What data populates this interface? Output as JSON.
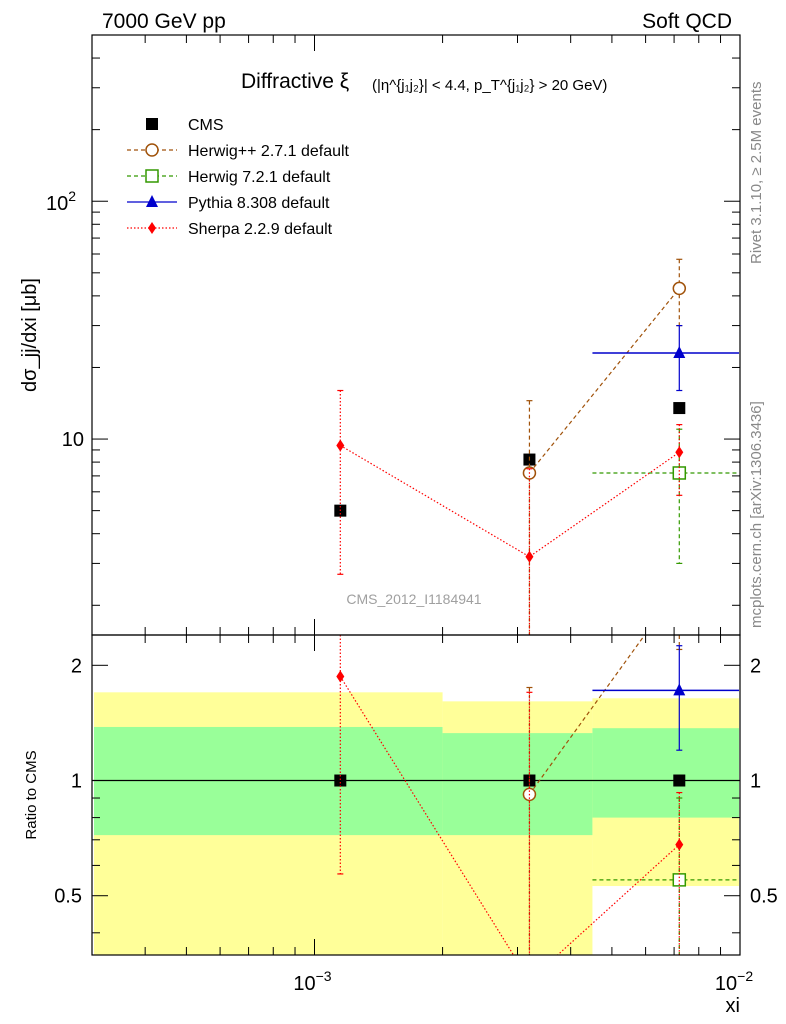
{
  "header": {
    "energy_label": "7000 GeV pp",
    "category_label": "Soft QCD"
  },
  "side": {
    "rivet_label": "Rivet 3.1.10, ≥ 2.5M events",
    "source_label": "mcplots.cern.ch [arXiv:1306.3436]"
  },
  "chart_data": {
    "type": "scatter",
    "title_main": "Diffractive ξ",
    "title_cut": "(|η^{j₁j₂}| < 4.4, p_T^{j₁j₂} > 20 GeV)",
    "watermark": "CMS_2012_I1184941",
    "xlabel": "xi",
    "ylabel": "dσ_jj/dxi [μb]",
    "ratio_ylabel": "Ratio to CMS",
    "x_scale": "log",
    "y_scale": "log",
    "xlim": [
      0.0003,
      0.01
    ],
    "ylim": [
      1.5,
      500
    ],
    "ratio_ylim": [
      0.35,
      2.4
    ],
    "x_tick_labels": [
      "10^-3",
      "10^-2"
    ],
    "y_tick_labels": [
      "10",
      "10^2"
    ],
    "ratio_tick_labels": [
      "0.5",
      "1",
      "2"
    ],
    "legend_position": "top-left",
    "bins": [
      {
        "xlow": 0.0003,
        "xhigh": 0.002,
        "xc": 0.00115
      },
      {
        "xlow": 0.002,
        "xhigh": 0.0045,
        "xc": 0.0032
      },
      {
        "xlow": 0.0045,
        "xhigh": 0.01,
        "xc": 0.0072
      }
    ],
    "bands": {
      "inner_color": "#99ff99",
      "outer_color": "#ffff99",
      "values": [
        {
          "inner": [
            0.72,
            1.38
          ],
          "outer": [
            0.3,
            1.7
          ]
        },
        {
          "inner": [
            0.72,
            1.33
          ],
          "outer": [
            0.3,
            1.61
          ]
        },
        {
          "inner": [
            0.8,
            1.37
          ],
          "outer": [
            0.53,
            1.64
          ]
        }
      ]
    },
    "series": [
      {
        "name": "CMS",
        "color": "#000000",
        "marker": "square-filled",
        "line": "none",
        "x": [
          0.00115,
          0.0032,
          0.0072
        ],
        "y": [
          5.0,
          8.2,
          13.5
        ],
        "ratio": [
          1.0,
          1.0,
          1.0
        ]
      },
      {
        "name": "Herwig++ 2.7.1 default",
        "color": "#a0520a",
        "marker": "circle-open",
        "line": "dashed",
        "x": [
          0.0032,
          0.0072
        ],
        "y": [
          7.2,
          43
        ],
        "yerr_low": [
          0.8,
          30
        ],
        "yerr_high": [
          14.5,
          57
        ],
        "ratio": [
          0.92,
          3.2
        ],
        "ratio_err_low": [
          0.3,
          2.2
        ],
        "ratio_err_high": [
          1.75,
          4.2
        ]
      },
      {
        "name": "Herwig 7.2.1 default",
        "color": "#339900",
        "marker": "square-open",
        "line": "dashed",
        "x": [
          0.0072
        ],
        "y": [
          7.2
        ],
        "yerr_low": [
          3.0
        ],
        "yerr_high": [
          11.0
        ],
        "ratio": [
          0.55
        ],
        "ratio_err_low": [
          0.3
        ],
        "ratio_err_high": [
          0.9
        ]
      },
      {
        "name": "Pythia 8.308 default",
        "color": "#0000cc",
        "marker": "triangle-filled",
        "line": "solid",
        "x": [
          0.0072
        ],
        "y": [
          23
        ],
        "yerr_low": [
          16
        ],
        "yerr_high": [
          30
        ],
        "ratio": [
          1.72
        ],
        "ratio_err_low": [
          1.2
        ],
        "ratio_err_high": [
          2.25
        ],
        "xerr_range": [
          0.0045,
          0.01
        ]
      },
      {
        "name": "Sherpa 2.2.9 default",
        "color": "#ff0000",
        "marker": "diamond-filled",
        "line": "dotted",
        "x": [
          0.00115,
          0.0032,
          0.0072
        ],
        "y": [
          9.4,
          3.2,
          8.8
        ],
        "yerr_low": [
          2.7,
          1.3,
          5.8
        ],
        "yerr_high": [
          16.0,
          7.5,
          11.5
        ],
        "ratio": [
          1.87,
          0.3,
          0.68
        ],
        "ratio_err_low": [
          0.57,
          0.3,
          0.3
        ],
        "ratio_err_high": [
          2.5,
          1.7,
          0.93
        ]
      }
    ]
  }
}
